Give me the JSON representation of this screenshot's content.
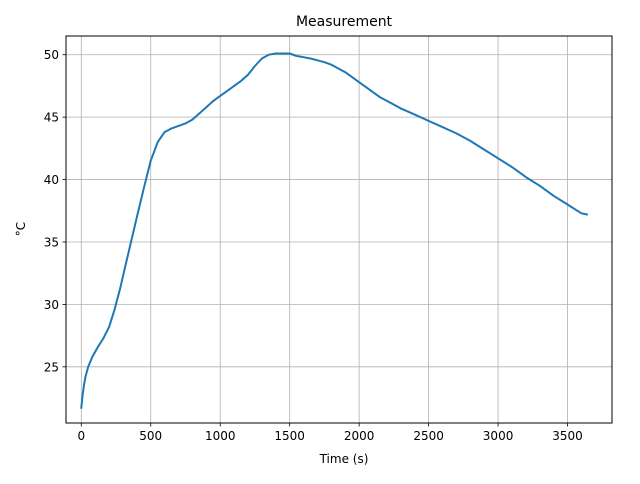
{
  "chart_data": {
    "type": "line",
    "title": "Measurement",
    "xlabel": "Time (s)",
    "ylabel": "°C",
    "xlim": [
      -110,
      3820
    ],
    "ylim": [
      20.5,
      51.5
    ],
    "xticks": [
      0,
      500,
      1000,
      1500,
      2000,
      2500,
      3000,
      3500
    ],
    "yticks": [
      25,
      30,
      35,
      40,
      45,
      50
    ],
    "grid": true,
    "series": [
      {
        "color": "#1f77b4",
        "x": [
          0,
          10,
          20,
          30,
          50,
          80,
          120,
          160,
          200,
          240,
          280,
          320,
          360,
          400,
          450,
          500,
          550,
          600,
          650,
          700,
          750,
          800,
          850,
          900,
          950,
          1000,
          1050,
          1100,
          1150,
          1200,
          1250,
          1300,
          1350,
          1400,
          1450,
          1500,
          1550,
          1600,
          1650,
          1700,
          1750,
          1800,
          1850,
          1900,
          1950,
          2000,
          2050,
          2100,
          2150,
          2200,
          2300,
          2400,
          2500,
          2600,
          2700,
          2800,
          2900,
          3000,
          3100,
          3200,
          3300,
          3400,
          3500,
          3600,
          3640
        ],
        "y": [
          21.7,
          22.8,
          23.6,
          24.2,
          25.0,
          25.8,
          26.6,
          27.3,
          28.2,
          29.6,
          31.3,
          33.2,
          35.1,
          37.0,
          39.3,
          41.5,
          43.0,
          43.8,
          44.1,
          44.3,
          44.5,
          44.8,
          45.3,
          45.8,
          46.3,
          46.7,
          47.1,
          47.5,
          47.9,
          48.4,
          49.1,
          49.7,
          50.0,
          50.1,
          50.1,
          50.1,
          49.9,
          49.8,
          49.7,
          49.55,
          49.4,
          49.2,
          48.9,
          48.6,
          48.2,
          47.8,
          47.4,
          47.0,
          46.6,
          46.3,
          45.7,
          45.2,
          44.7,
          44.2,
          43.7,
          43.1,
          42.4,
          41.7,
          41.0,
          40.2,
          39.5,
          38.7,
          38.0,
          37.3,
          37.2
        ]
      }
    ]
  }
}
